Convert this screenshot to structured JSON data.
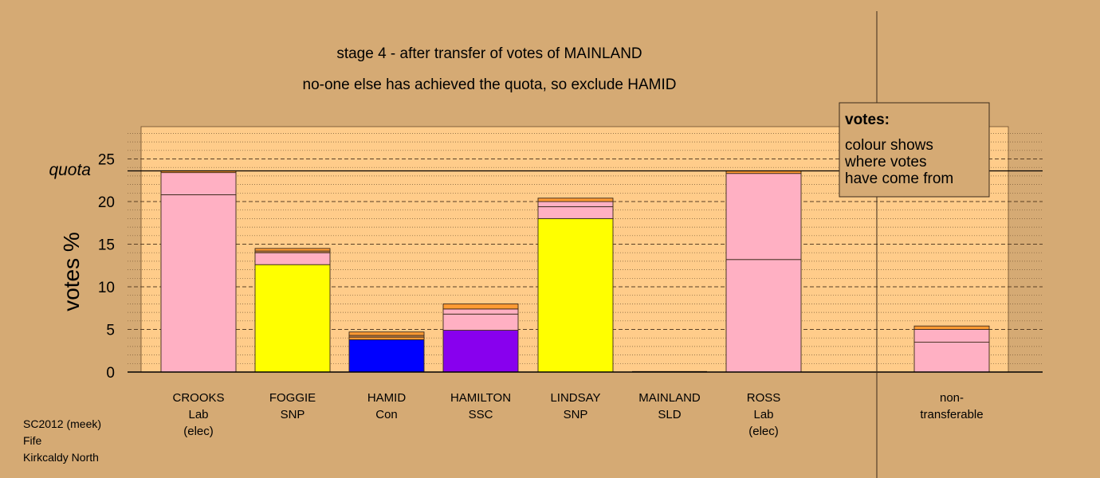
{
  "chart_data": {
    "type": "bar",
    "title": "stage 4 - after transfer of votes of MAINLAND",
    "subtitle": "no-one else has achieved the quota, so exclude HAMID",
    "ylabel": "votes %",
    "ylim": [
      0,
      28.7
    ],
    "yticks": [
      0,
      5,
      10,
      15,
      20,
      25
    ],
    "quota": 23.6,
    "quota_label": "quota",
    "legend": {
      "heading": "votes:",
      "lines": [
        "colour shows",
        "where votes",
        "have come from"
      ],
      "placement": "top-right"
    },
    "colors": {
      "background": "#d5aa74",
      "plot": "#ffcc8a",
      "Lab": "#ffb0c3",
      "SNP": "#ffff00",
      "Con": "#0000ff",
      "SSC": "#8800ee",
      "SLD": "#ff9a33",
      "misc": "#c8874e"
    },
    "categories": [
      {
        "name": "CROOKS",
        "party": "Lab",
        "note": "(elec)",
        "total": 23.6,
        "segments": [
          {
            "from": "Lab",
            "value": 20.8
          },
          {
            "from": "Lab",
            "value": 2.6
          },
          {
            "from": "SLD",
            "value": 0.2
          }
        ]
      },
      {
        "name": "FOGGIE",
        "party": "SNP",
        "note": "",
        "total": 14.5,
        "segments": [
          {
            "from": "SNP",
            "value": 12.6
          },
          {
            "from": "Lab",
            "value": 1.4
          },
          {
            "from": "misc",
            "value": 0.2
          },
          {
            "from": "SLD",
            "value": 0.3
          }
        ]
      },
      {
        "name": "HAMID",
        "party": "Con",
        "note": "",
        "total": 4.7,
        "segments": [
          {
            "from": "Con",
            "value": 3.8
          },
          {
            "from": "SLD",
            "value": 0.3
          },
          {
            "from": "misc",
            "value": 0.2
          },
          {
            "from": "SLD",
            "value": 0.4
          }
        ]
      },
      {
        "name": "HAMILTON",
        "party": "SSC",
        "note": "",
        "total": 8.0,
        "segments": [
          {
            "from": "SSC",
            "value": 4.9
          },
          {
            "from": "Lab",
            "value": 1.9
          },
          {
            "from": "Lab",
            "value": 0.6
          },
          {
            "from": "SLD",
            "value": 0.6
          }
        ]
      },
      {
        "name": "LINDSAY",
        "party": "SNP",
        "note": "",
        "total": 20.4,
        "segments": [
          {
            "from": "SNP",
            "value": 18.0
          },
          {
            "from": "Lab",
            "value": 1.4
          },
          {
            "from": "Lab",
            "value": 0.6
          },
          {
            "from": "SLD",
            "value": 0.4
          }
        ]
      },
      {
        "name": "MAINLAND",
        "party": "SLD",
        "note": "",
        "total": 0.0,
        "segments": []
      },
      {
        "name": "ROSS",
        "party": "Lab",
        "note": "(elec)",
        "total": 23.6,
        "segments": [
          {
            "from": "Lab",
            "value": 13.2
          },
          {
            "from": "Lab",
            "value": 10.1
          },
          {
            "from": "SLD",
            "value": 0.3
          }
        ]
      }
    ],
    "nontransferable": {
      "label_line1": "non-",
      "label_line2": "transferable",
      "total": 5.4,
      "segments": [
        {
          "from": "Lab",
          "value": 3.5
        },
        {
          "from": "Lab",
          "value": 1.5
        },
        {
          "from": "SLD",
          "value": 0.4
        }
      ]
    }
  },
  "footer": {
    "line1": "SC2012 (meek)",
    "line2": "Fife",
    "line3": "Kirkcaldy North"
  }
}
